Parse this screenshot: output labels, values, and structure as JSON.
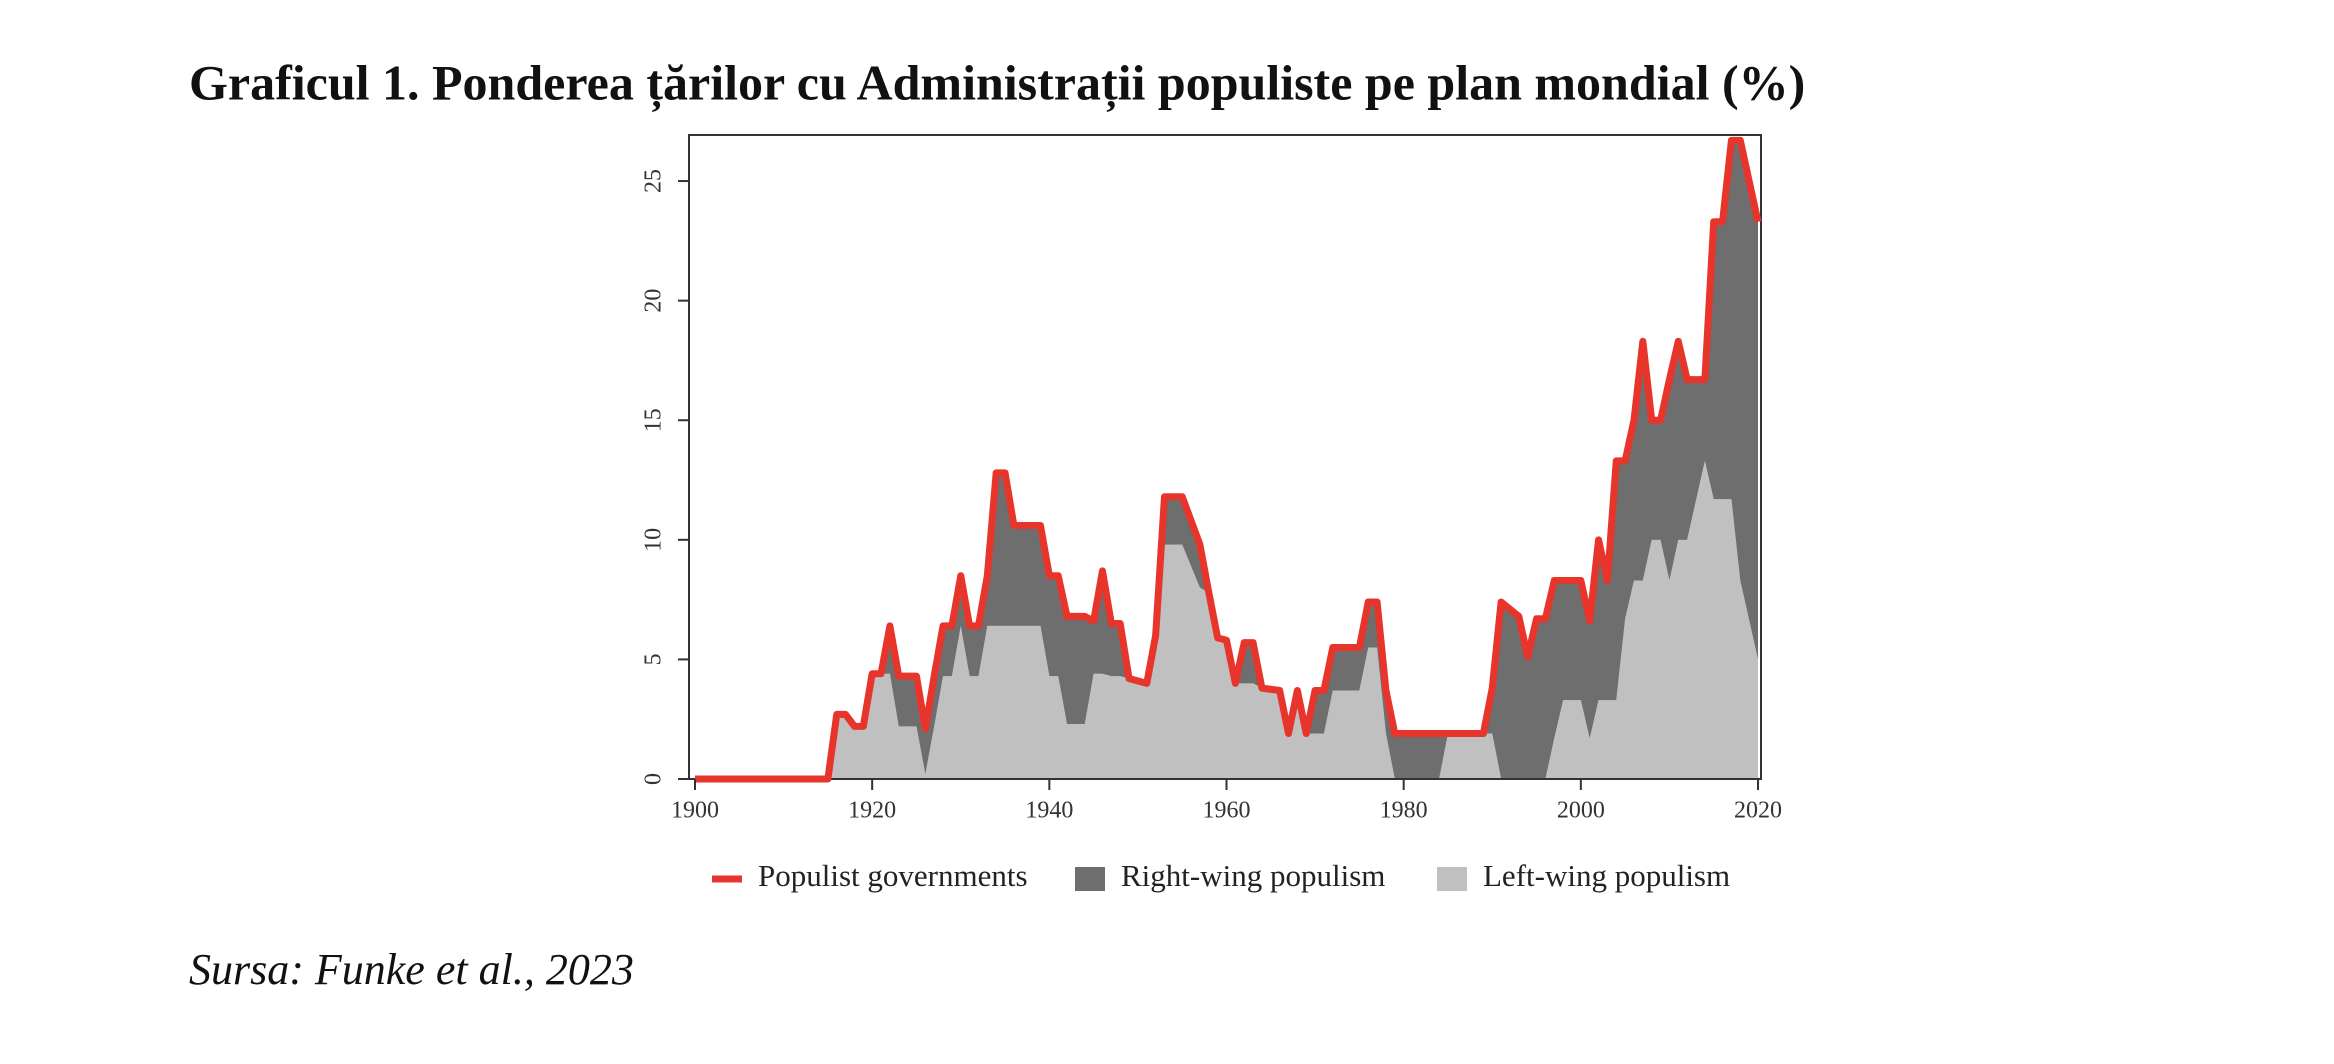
{
  "chart_data": {
    "type": "area",
    "title": "Graficul 1. Ponderea țărilor cu Administrații populiste pe plan mondial (%)",
    "x": [
      1900,
      1915,
      1916,
      1917,
      1918,
      1919,
      1920,
      1921,
      1922,
      1923,
      1925,
      1926,
      1927,
      1928,
      1929,
      1930,
      1931,
      1932,
      1933,
      1934,
      1935,
      1936,
      1939,
      1940,
      1941,
      1942,
      1944,
      1945,
      1946,
      1947,
      1948,
      1949,
      1951,
      1952,
      1953,
      1955,
      1957,
      1958,
      1959,
      1960,
      1961,
      1962,
      1963,
      1964,
      1966,
      1967,
      1968,
      1969,
      1970,
      1971,
      1972,
      1975,
      1976,
      1977,
      1978,
      1979,
      1984,
      1985,
      1989,
      1990,
      1991,
      1993,
      1994,
      1995,
      1996,
      1997,
      1998,
      2000,
      2001,
      2002,
      2003,
      2004,
      2005,
      2006,
      2007,
      2008,
      2009,
      2010,
      2011,
      2012,
      2014,
      2015,
      2016,
      2017,
      2018,
      2020
    ],
    "series": [
      {
        "name": "Populist governments",
        "type": "line",
        "color": "#e8352b",
        "values": [
          0,
          0,
          2.7,
          2.7,
          2.2,
          2.2,
          4.4,
          4.4,
          6.4,
          4.3,
          4.3,
          2.1,
          4.3,
          6.4,
          6.4,
          8.5,
          6.4,
          6.4,
          8.5,
          12.8,
          12.8,
          10.6,
          10.6,
          8.5,
          8.5,
          6.8,
          6.8,
          6.6,
          8.7,
          6.5,
          6.5,
          4.2,
          4.0,
          6.0,
          11.8,
          11.8,
          9.8,
          7.8,
          5.9,
          5.8,
          4.0,
          5.7,
          5.7,
          3.8,
          3.7,
          1.9,
          3.7,
          1.9,
          3.7,
          3.7,
          5.5,
          5.5,
          7.4,
          7.4,
          3.7,
          1.9,
          1.9,
          1.9,
          1.9,
          3.8,
          7.4,
          6.8,
          5.1,
          6.7,
          6.7,
          8.3,
          8.3,
          8.3,
          6.6,
          10.0,
          8.3,
          13.3,
          13.3,
          15.0,
          18.3,
          15.0,
          15.0,
          16.7,
          18.3,
          16.7,
          16.7,
          23.3,
          23.3,
          26.7,
          26.7,
          23.3
        ]
      },
      {
        "name": "Right-wing populism",
        "type": "area",
        "color": "#6e6e6e",
        "values": [
          0,
          0,
          0,
          0,
          0,
          0,
          0,
          0,
          2.0,
          2.1,
          2.1,
          1.9,
          2.1,
          2.1,
          2.1,
          2.1,
          2.1,
          2.1,
          2.1,
          6.4,
          6.4,
          4.2,
          4.2,
          4.2,
          4.2,
          4.5,
          4.5,
          2.2,
          4.3,
          2.2,
          2.2,
          0,
          0,
          0,
          2.0,
          2.0,
          1.8,
          0,
          0,
          0,
          0,
          1.7,
          1.7,
          0,
          0,
          0,
          0,
          0,
          1.8,
          1.8,
          1.8,
          1.8,
          1.9,
          1.9,
          1.8,
          1.9,
          1.9,
          0,
          0,
          1.9,
          7.4,
          6.8,
          5.1,
          6.7,
          6.7,
          6.6,
          5.0,
          5.0,
          4.9,
          6.7,
          5.0,
          10.0,
          6.6,
          6.7,
          10.0,
          5.0,
          5.0,
          8.4,
          8.3,
          6.7,
          3.4,
          11.6,
          11.6,
          15.0,
          18.4,
          18.3
        ]
      },
      {
        "name": "Left-wing populism",
        "type": "area",
        "color": "#c0c0c0",
        "values": [
          0,
          0,
          2.7,
          2.7,
          2.2,
          2.2,
          4.4,
          4.4,
          4.4,
          2.2,
          2.2,
          0.2,
          2.2,
          4.3,
          4.3,
          6.4,
          4.3,
          4.3,
          6.4,
          6.4,
          6.4,
          6.4,
          6.4,
          4.3,
          4.3,
          2.3,
          2.3,
          4.4,
          4.4,
          4.3,
          4.3,
          4.2,
          4.0,
          6.0,
          9.8,
          9.8,
          8.0,
          7.8,
          5.9,
          5.8,
          4.0,
          4.0,
          4.0,
          3.8,
          3.7,
          1.9,
          3.7,
          1.9,
          1.9,
          1.9,
          3.7,
          3.7,
          5.5,
          5.5,
          1.9,
          0,
          0,
          1.9,
          1.9,
          1.9,
          0,
          0,
          0,
          0,
          0,
          1.7,
          3.3,
          3.3,
          1.7,
          3.3,
          3.3,
          3.3,
          6.7,
          8.3,
          8.3,
          10.0,
          10.0,
          8.3,
          10.0,
          10.0,
          13.3,
          11.7,
          11.7,
          11.7,
          8.3,
          5.0
        ]
      }
    ],
    "xlim": [
      1900,
      2020
    ],
    "xticks": [
      1900,
      1920,
      1940,
      1960,
      1980,
      2000,
      2020
    ],
    "ylim": [
      0,
      26.8
    ],
    "yticks": [
      0,
      5,
      10,
      15,
      20,
      25
    ],
    "grid": false,
    "legend": "bottom"
  },
  "source": "Sursa: Funke et al., 2023"
}
